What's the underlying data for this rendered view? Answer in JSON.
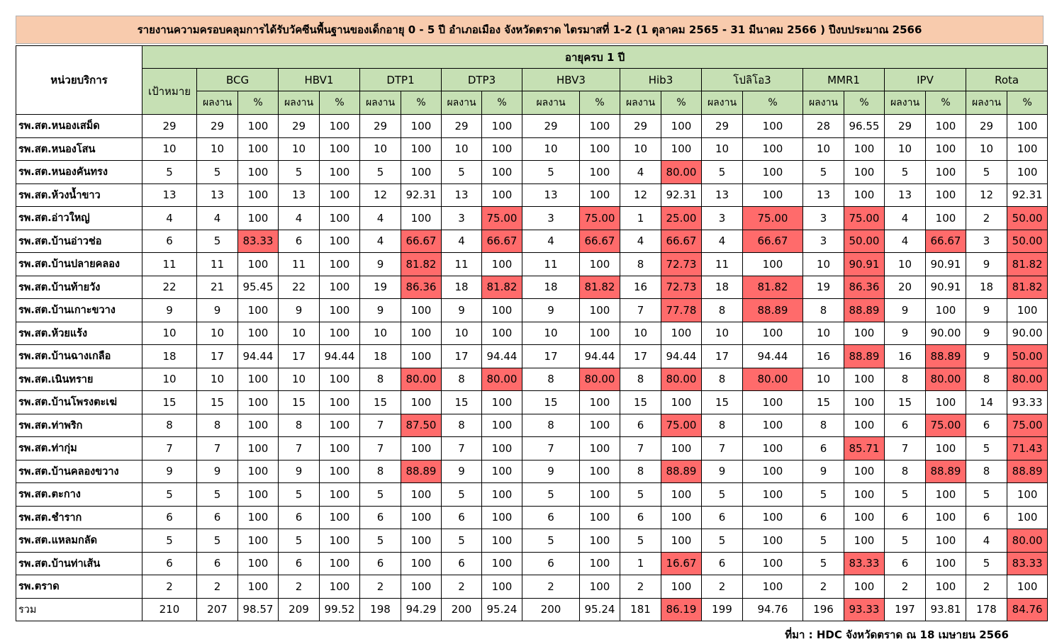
{
  "title": "รายงานความครอบคลุมการได้รับวัคซีนพื้นฐานของเด็กอายุ 0 - 5 ปี อำเภอเมือง จังหวัดตราด ไตรมาสที่ 1-2 (1 ตุลาคม 2565 - 31 มีนาคม 2566 ) ปีงบประมาณ 2566",
  "header": {
    "unit_label": "หน่วยบริการ",
    "age_group": "อายุครบ 1 ปี",
    "target_label": "เป้าหมาย",
    "result_label": "ผลงาน",
    "percent_label": "%",
    "vaccines": [
      "BCG",
      "HBV1",
      "DTP1",
      "DTP3",
      "HBV3",
      "Hib3",
      "โปลิโอ3",
      "MMR1",
      "IPV",
      "Rota"
    ]
  },
  "rows": [
    {
      "unit": "รพ.สต.หนองเสม็ด",
      "target": "29",
      "cells": [
        [
          "29",
          "100"
        ],
        [
          "29",
          "100"
        ],
        [
          "29",
          "100"
        ],
        [
          "29",
          "100"
        ],
        [
          "29",
          "100"
        ],
        [
          "29",
          "100"
        ],
        [
          "29",
          "100"
        ],
        [
          "28",
          "96.55"
        ],
        [
          "29",
          "100"
        ],
        [
          "29",
          "100"
        ]
      ],
      "low": []
    },
    {
      "unit": "รพ.สต.หนองโสน",
      "target": "10",
      "cells": [
        [
          "10",
          "100"
        ],
        [
          "10",
          "100"
        ],
        [
          "10",
          "100"
        ],
        [
          "10",
          "100"
        ],
        [
          "10",
          "100"
        ],
        [
          "10",
          "100"
        ],
        [
          "10",
          "100"
        ],
        [
          "10",
          "100"
        ],
        [
          "10",
          "100"
        ],
        [
          "10",
          "100"
        ]
      ],
      "low": []
    },
    {
      "unit": "รพ.สต.หนองคันทรง",
      "target": "5",
      "cells": [
        [
          "5",
          "100"
        ],
        [
          "5",
          "100"
        ],
        [
          "5",
          "100"
        ],
        [
          "5",
          "100"
        ],
        [
          "5",
          "100"
        ],
        [
          "4",
          "80.00"
        ],
        [
          "5",
          "100"
        ],
        [
          "5",
          "100"
        ],
        [
          "5",
          "100"
        ],
        [
          "5",
          "100"
        ]
      ],
      "low": [
        5
      ]
    },
    {
      "unit": "รพ.สต.ห้วงน้ำขาว",
      "target": "13",
      "cells": [
        [
          "13",
          "100"
        ],
        [
          "13",
          "100"
        ],
        [
          "12",
          "92.31"
        ],
        [
          "13",
          "100"
        ],
        [
          "13",
          "100"
        ],
        [
          "12",
          "92.31"
        ],
        [
          "13",
          "100"
        ],
        [
          "13",
          "100"
        ],
        [
          "13",
          "100"
        ],
        [
          "12",
          "92.31"
        ]
      ],
      "low": []
    },
    {
      "unit": "รพ.สต.อ่าวใหญ่",
      "target": "4",
      "cells": [
        [
          "4",
          "100"
        ],
        [
          "4",
          "100"
        ],
        [
          "4",
          "100"
        ],
        [
          "3",
          "75.00"
        ],
        [
          "3",
          "75.00"
        ],
        [
          "1",
          "25.00"
        ],
        [
          "3",
          "75.00"
        ],
        [
          "3",
          "75.00"
        ],
        [
          "4",
          "100"
        ],
        [
          "2",
          "50.00"
        ]
      ],
      "low": [
        3,
        4,
        5,
        6,
        7,
        9
      ]
    },
    {
      "unit": "รพ.สต.บ้านอ่าวช่อ",
      "target": "6",
      "cells": [
        [
          "5",
          "83.33"
        ],
        [
          "6",
          "100"
        ],
        [
          "4",
          "66.67"
        ],
        [
          "4",
          "66.67"
        ],
        [
          "4",
          "66.67"
        ],
        [
          "4",
          "66.67"
        ],
        [
          "4",
          "66.67"
        ],
        [
          "3",
          "50.00"
        ],
        [
          "4",
          "66.67"
        ],
        [
          "3",
          "50.00"
        ]
      ],
      "low": [
        0,
        2,
        3,
        4,
        5,
        6,
        7,
        8,
        9
      ]
    },
    {
      "unit": "รพ.สต.บ้านปลายคลอง",
      "target": "11",
      "cells": [
        [
          "11",
          "100"
        ],
        [
          "11",
          "100"
        ],
        [
          "9",
          "81.82"
        ],
        [
          "11",
          "100"
        ],
        [
          "11",
          "100"
        ],
        [
          "8",
          "72.73"
        ],
        [
          "11",
          "100"
        ],
        [
          "10",
          "90.91"
        ],
        [
          "10",
          "90.91"
        ],
        [
          "9",
          "81.82"
        ]
      ],
      "low": [
        2,
        5,
        7,
        9
      ]
    },
    {
      "unit": "รพ.สต.บ้านท้ายวัง",
      "target": "22",
      "cells": [
        [
          "21",
          "95.45"
        ],
        [
          "22",
          "100"
        ],
        [
          "19",
          "86.36"
        ],
        [
          "18",
          "81.82"
        ],
        [
          "18",
          "81.82"
        ],
        [
          "16",
          "72.73"
        ],
        [
          "18",
          "81.82"
        ],
        [
          "19",
          "86.36"
        ],
        [
          "20",
          "90.91"
        ],
        [
          "18",
          "81.82"
        ]
      ],
      "low": [
        2,
        3,
        4,
        5,
        6,
        7,
        9
      ]
    },
    {
      "unit": "รพ.สต.บ้านเกาะขวาง",
      "target": "9",
      "cells": [
        [
          "9",
          "100"
        ],
        [
          "9",
          "100"
        ],
        [
          "9",
          "100"
        ],
        [
          "9",
          "100"
        ],
        [
          "9",
          "100"
        ],
        [
          "7",
          "77.78"
        ],
        [
          "8",
          "88.89"
        ],
        [
          "8",
          "88.89"
        ],
        [
          "9",
          "100"
        ],
        [
          "9",
          "100"
        ]
      ],
      "low": [
        5,
        6,
        7
      ]
    },
    {
      "unit": "รพ.สต.ห้วยแร้ง",
      "target": "10",
      "cells": [
        [
          "10",
          "100"
        ],
        [
          "10",
          "100"
        ],
        [
          "10",
          "100"
        ],
        [
          "10",
          "100"
        ],
        [
          "10",
          "100"
        ],
        [
          "10",
          "100"
        ],
        [
          "10",
          "100"
        ],
        [
          "10",
          "100"
        ],
        [
          "9",
          "90.00"
        ],
        [
          "9",
          "90.00"
        ]
      ],
      "low": []
    },
    {
      "unit": "รพ.สต.บ้านฉางเกลือ",
      "target": "18",
      "cells": [
        [
          "17",
          "94.44"
        ],
        [
          "17",
          "94.44"
        ],
        [
          "18",
          "100"
        ],
        [
          "17",
          "94.44"
        ],
        [
          "17",
          "94.44"
        ],
        [
          "17",
          "94.44"
        ],
        [
          "17",
          "94.44"
        ],
        [
          "16",
          "88.89"
        ],
        [
          "16",
          "88.89"
        ],
        [
          "9",
          "50.00"
        ]
      ],
      "low": [
        7,
        8,
        9
      ]
    },
    {
      "unit": "รพ.สต.เนินทราย",
      "target": "10",
      "cells": [
        [
          "10",
          "100"
        ],
        [
          "10",
          "100"
        ],
        [
          "8",
          "80.00"
        ],
        [
          "8",
          "80.00"
        ],
        [
          "8",
          "80.00"
        ],
        [
          "8",
          "80.00"
        ],
        [
          "8",
          "80.00"
        ],
        [
          "10",
          "100"
        ],
        [
          "8",
          "80.00"
        ],
        [
          "8",
          "80.00"
        ]
      ],
      "low": [
        2,
        3,
        4,
        5,
        6,
        8,
        9
      ]
    },
    {
      "unit": "รพ.สต.บ้านโพรงตะเฆ่",
      "target": "15",
      "cells": [
        [
          "15",
          "100"
        ],
        [
          "15",
          "100"
        ],
        [
          "15",
          "100"
        ],
        [
          "15",
          "100"
        ],
        [
          "15",
          "100"
        ],
        [
          "15",
          "100"
        ],
        [
          "15",
          "100"
        ],
        [
          "15",
          "100"
        ],
        [
          "15",
          "100"
        ],
        [
          "14",
          "93.33"
        ]
      ],
      "low": []
    },
    {
      "unit": "รพ.สต.ท่าพริก",
      "target": "8",
      "cells": [
        [
          "8",
          "100"
        ],
        [
          "8",
          "100"
        ],
        [
          "7",
          "87.50"
        ],
        [
          "8",
          "100"
        ],
        [
          "8",
          "100"
        ],
        [
          "6",
          "75.00"
        ],
        [
          "8",
          "100"
        ],
        [
          "8",
          "100"
        ],
        [
          "6",
          "75.00"
        ],
        [
          "6",
          "75.00"
        ]
      ],
      "low": [
        2,
        5,
        8,
        9
      ]
    },
    {
      "unit": "รพ.สต.ท่ากุ่ม",
      "target": "7",
      "cells": [
        [
          "7",
          "100"
        ],
        [
          "7",
          "100"
        ],
        [
          "7",
          "100"
        ],
        [
          "7",
          "100"
        ],
        [
          "7",
          "100"
        ],
        [
          "7",
          "100"
        ],
        [
          "7",
          "100"
        ],
        [
          "6",
          "85.71"
        ],
        [
          "7",
          "100"
        ],
        [
          "5",
          "71.43"
        ]
      ],
      "low": [
        7,
        9
      ]
    },
    {
      "unit": "รพ.สต.บ้านคลองขวาง",
      "target": "9",
      "cells": [
        [
          "9",
          "100"
        ],
        [
          "9",
          "100"
        ],
        [
          "8",
          "88.89"
        ],
        [
          "9",
          "100"
        ],
        [
          "9",
          "100"
        ],
        [
          "8",
          "88.89"
        ],
        [
          "9",
          "100"
        ],
        [
          "9",
          "100"
        ],
        [
          "8",
          "88.89"
        ],
        [
          "8",
          "88.89"
        ]
      ],
      "low": [
        2,
        5,
        8,
        9
      ]
    },
    {
      "unit": "รพ.สต.ตะกาง",
      "target": "5",
      "cells": [
        [
          "5",
          "100"
        ],
        [
          "5",
          "100"
        ],
        [
          "5",
          "100"
        ],
        [
          "5",
          "100"
        ],
        [
          "5",
          "100"
        ],
        [
          "5",
          "100"
        ],
        [
          "5",
          "100"
        ],
        [
          "5",
          "100"
        ],
        [
          "5",
          "100"
        ],
        [
          "5",
          "100"
        ]
      ],
      "low": []
    },
    {
      "unit": "รพ.สต.ชำราก",
      "target": "6",
      "cells": [
        [
          "6",
          "100"
        ],
        [
          "6",
          "100"
        ],
        [
          "6",
          "100"
        ],
        [
          "6",
          "100"
        ],
        [
          "6",
          "100"
        ],
        [
          "6",
          "100"
        ],
        [
          "6",
          "100"
        ],
        [
          "6",
          "100"
        ],
        [
          "6",
          "100"
        ],
        [
          "6",
          "100"
        ]
      ],
      "low": []
    },
    {
      "unit": "รพ.สต.แหลมกลัด",
      "target": "5",
      "cells": [
        [
          "5",
          "100"
        ],
        [
          "5",
          "100"
        ],
        [
          "5",
          "100"
        ],
        [
          "5",
          "100"
        ],
        [
          "5",
          "100"
        ],
        [
          "5",
          "100"
        ],
        [
          "5",
          "100"
        ],
        [
          "5",
          "100"
        ],
        [
          "5",
          "100"
        ],
        [
          "4",
          "80.00"
        ]
      ],
      "low": [
        9
      ]
    },
    {
      "unit": "รพ.สต.บ้านท่าเส้น",
      "target": "6",
      "cells": [
        [
          "6",
          "100"
        ],
        [
          "6",
          "100"
        ],
        [
          "6",
          "100"
        ],
        [
          "6",
          "100"
        ],
        [
          "6",
          "100"
        ],
        [
          "1",
          "16.67"
        ],
        [
          "6",
          "100"
        ],
        [
          "5",
          "83.33"
        ],
        [
          "6",
          "100"
        ],
        [
          "5",
          "83.33"
        ]
      ],
      "low": [
        5,
        7,
        9
      ]
    },
    {
      "unit": "รพ.ตราด",
      "target": "2",
      "cells": [
        [
          "2",
          "100"
        ],
        [
          "2",
          "100"
        ],
        [
          "2",
          "100"
        ],
        [
          "2",
          "100"
        ],
        [
          "2",
          "100"
        ],
        [
          "2",
          "100"
        ],
        [
          "2",
          "100"
        ],
        [
          "2",
          "100"
        ],
        [
          "2",
          "100"
        ],
        [
          "2",
          "100"
        ]
      ],
      "low": []
    },
    {
      "unit": "รวม",
      "target": "210",
      "cells": [
        [
          "207",
          "98.57"
        ],
        [
          "209",
          "99.52"
        ],
        [
          "198",
          "94.29"
        ],
        [
          "200",
          "95.24"
        ],
        [
          "200",
          "95.24"
        ],
        [
          "181",
          "86.19"
        ],
        [
          "199",
          "94.76"
        ],
        [
          "196",
          "93.33"
        ],
        [
          "197",
          "93.81"
        ],
        [
          "178",
          "84.76"
        ]
      ],
      "low": [
        5,
        7,
        9
      ]
    }
  ],
  "highlight_color": "#ff6b6b",
  "header_color": "#c6e0b4",
  "title_bg_color": "#f8cbad",
  "source": "ที่มา : HDC จังหวัดตราด ณ 18 เมษายน 2566"
}
